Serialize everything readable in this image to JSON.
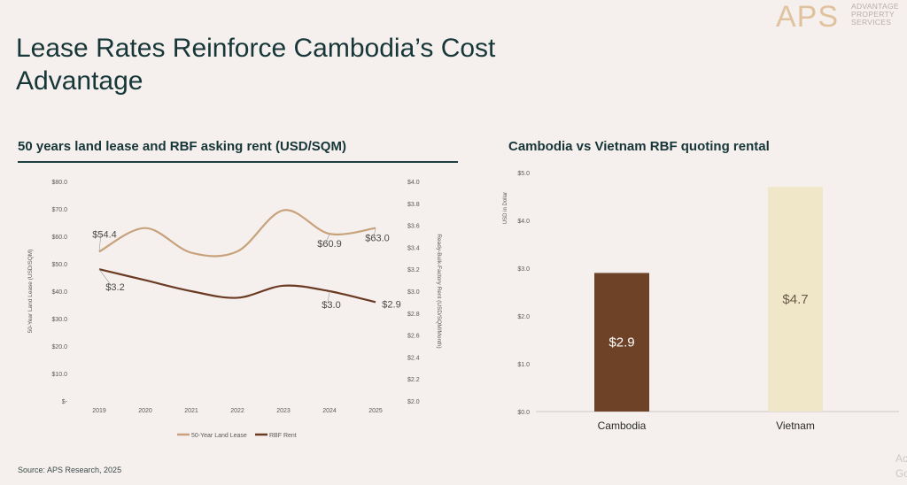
{
  "title": "Lease Rates Reinforce Cambodia’s Cost Advantage",
  "logo": {
    "mark": "APS",
    "lines": [
      "ADVANTAGE",
      "PROPERTY",
      "SERVICES"
    ]
  },
  "source": "Source: APS Research, 2025",
  "corner_text": [
    "Ac",
    "Go"
  ],
  "colors": {
    "lease": "#c8a27c",
    "rbf": "#6b3a22",
    "cambodia_bar": "#6e4226",
    "vietnam_bar": "#f0e6c8"
  },
  "chart_data": [
    {
      "type": "line",
      "title": "50 years land lease and RBF asking rent (USD/SQM)",
      "x": [
        "2019",
        "2020",
        "2021",
        "2022",
        "2023",
        "2024",
        "2025"
      ],
      "ylabel_left": "50-Year Land Lease (USD/SQM)",
      "ylabel_right": "Ready-Bulk-Factory Rent (USD/SQM/Month)",
      "ylim_left": [
        0,
        80
      ],
      "ylim_right": [
        2.0,
        4.0
      ],
      "yticks_left": [
        "$80.0",
        "$70.0",
        "$60.0",
        "$50.0",
        "$40.0",
        "$30.0",
        "$20.0",
        "$10.0",
        "$-"
      ],
      "yticks_right": [
        "$4.0",
        "$3.8",
        "$3.6",
        "$3.4",
        "$3.2",
        "$3.0",
        "$2.8",
        "$2.6",
        "$2.4",
        "$2.2",
        "$2.0"
      ],
      "legend_position": "bottom",
      "series": [
        {
          "name": "50-Year Land Lease",
          "axis": "left",
          "values": [
            54.4,
            63.0,
            54.0,
            54.5,
            69.5,
            60.9,
            63.0
          ],
          "labels": [
            {
              "x": "2019",
              "text": "$54.4"
            },
            {
              "x": "2024",
              "text": "$60.9"
            },
            {
              "x": "2025",
              "text": "$63.0"
            }
          ]
        },
        {
          "name": "RBF Rent",
          "axis": "right",
          "values": [
            3.2,
            3.1,
            3.0,
            2.94,
            3.05,
            3.0,
            2.9
          ],
          "labels": [
            {
              "x": "2019",
              "text": "$3.2"
            },
            {
              "x": "2024",
              "text": "$3.0"
            },
            {
              "x": "2025",
              "text": "$2.9"
            }
          ]
        }
      ]
    },
    {
      "type": "bar",
      "title": "Cambodia vs Vietnam RBF quoting rental",
      "categories": [
        "Cambodia",
        "Vietnam"
      ],
      "values": [
        2.9,
        4.7
      ],
      "labels": [
        "$2.9",
        "$4.7"
      ],
      "ylabel": "USD in Dollar",
      "ylim": [
        0,
        5
      ],
      "yticks": [
        "$5.0",
        "$4.0",
        "$3.0",
        "$2.0",
        "$1.0",
        "$0.0"
      ]
    }
  ]
}
